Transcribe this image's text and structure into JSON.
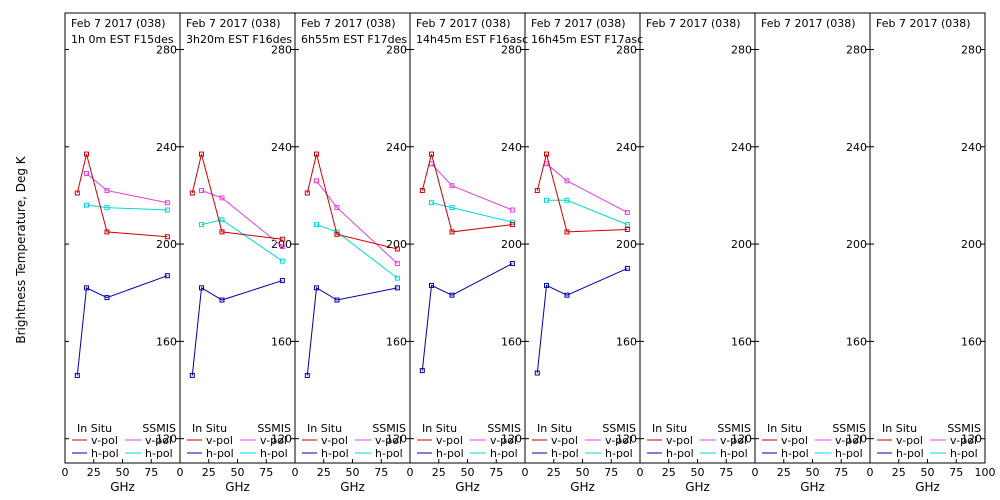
{
  "ylabel": "Brightness Temperature, Deg K",
  "xlabel": "GHz",
  "legend": {
    "in_situ": "In Situ",
    "ssmis": "SSMIS",
    "vpol": "v-pol",
    "hpol": "h-pol"
  },
  "colors": {
    "insitu_v": "#cc0000",
    "insitu_h": "#0000aa",
    "ssmis_v": "#e040e0",
    "ssmis_h": "#00d8d8"
  },
  "chart_data": {
    "type": "line",
    "xlim": [
      0,
      100
    ],
    "ylim": [
      110,
      295
    ],
    "xticks": [
      "0",
      "25",
      "50",
      "75"
    ],
    "xticks_last": [
      "0",
      "25",
      "50",
      "75",
      "100"
    ],
    "yticks": [
      "120",
      "160",
      "200",
      "240",
      "280"
    ],
    "frequencies": [
      10.7,
      18.7,
      36.5,
      89.0
    ],
    "panels": [
      {
        "title": "Feb 7 2017 (038)",
        "subtitle": "1h 0m  EST F15des",
        "insitu_v": [
          221,
          237,
          205,
          203
        ],
        "insitu_h": [
          146,
          182,
          178,
          187
        ],
        "ssmis_v": [
          null,
          229,
          222,
          217
        ],
        "ssmis_h": [
          null,
          216,
          215,
          214
        ]
      },
      {
        "title": "Feb 7 2017 (038)",
        "subtitle": "3h20m  EST F16des",
        "insitu_v": [
          221,
          237,
          205,
          202
        ],
        "insitu_h": [
          146,
          182,
          177,
          185
        ],
        "ssmis_v": [
          null,
          222,
          219,
          199
        ],
        "ssmis_h": [
          null,
          208,
          210,
          193
        ]
      },
      {
        "title": "Feb 7 2017 (038)",
        "subtitle": "6h55m  EST F17des",
        "insitu_v": [
          221,
          237,
          204,
          198
        ],
        "insitu_h": [
          146,
          182,
          177,
          182
        ],
        "ssmis_v": [
          null,
          226,
          215,
          192
        ],
        "ssmis_h": [
          null,
          208,
          205,
          186
        ]
      },
      {
        "title": "Feb 7 2017 (038)",
        "subtitle": "14h45m  EST F16asc",
        "insitu_v": [
          222,
          237,
          205,
          208
        ],
        "insitu_h": [
          148,
          183,
          179,
          192
        ],
        "ssmis_v": [
          null,
          233,
          224,
          214
        ],
        "ssmis_h": [
          null,
          217,
          215,
          209
        ]
      },
      {
        "title": "Feb 7 2017 (038)",
        "subtitle": "16h45m  EST F17asc",
        "insitu_v": [
          222,
          237,
          205,
          206
        ],
        "insitu_h": [
          147,
          183,
          179,
          190
        ],
        "ssmis_v": [
          null,
          233,
          226,
          213
        ],
        "ssmis_h": [
          null,
          218,
          218,
          208
        ]
      },
      {
        "title": "Feb 7 2017 (038)",
        "subtitle": "",
        "insitu_v": [],
        "insitu_h": [],
        "ssmis_v": [],
        "ssmis_h": []
      },
      {
        "title": "Feb 7 2017 (038)",
        "subtitle": "",
        "insitu_v": [],
        "insitu_h": [],
        "ssmis_v": [],
        "ssmis_h": []
      },
      {
        "title": "Feb 7 2017 (038)",
        "subtitle": "",
        "insitu_v": [],
        "insitu_h": [],
        "ssmis_v": [],
        "ssmis_h": []
      }
    ]
  }
}
